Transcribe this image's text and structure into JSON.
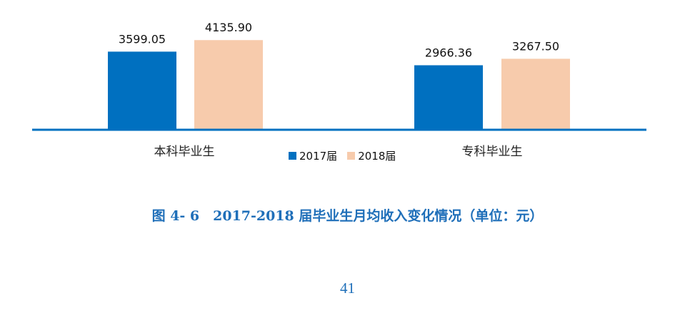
{
  "chart_data": {
    "type": "bar",
    "categories": [
      "本科毕业生",
      "专科毕业生"
    ],
    "series": [
      {
        "name": "2017届",
        "values": [
          3599.05,
          2966.36
        ],
        "color": "#0070c0"
      },
      {
        "name": "2018届",
        "values": [
          4135.9,
          3267.5
        ],
        "color": "#f7cbac"
      }
    ],
    "data_labels": [
      [
        "3599.05",
        "2966.36"
      ],
      [
        "4135.90",
        "3267.50"
      ]
    ],
    "ylim": [
      0,
      6000
    ],
    "grid": false,
    "legend": "bottom-center",
    "axis_color": "#0070c0"
  },
  "caption": "图 4- 6　2017-2018 届毕业生月均收入变化情况（单位：元）",
  "page_number": "41"
}
